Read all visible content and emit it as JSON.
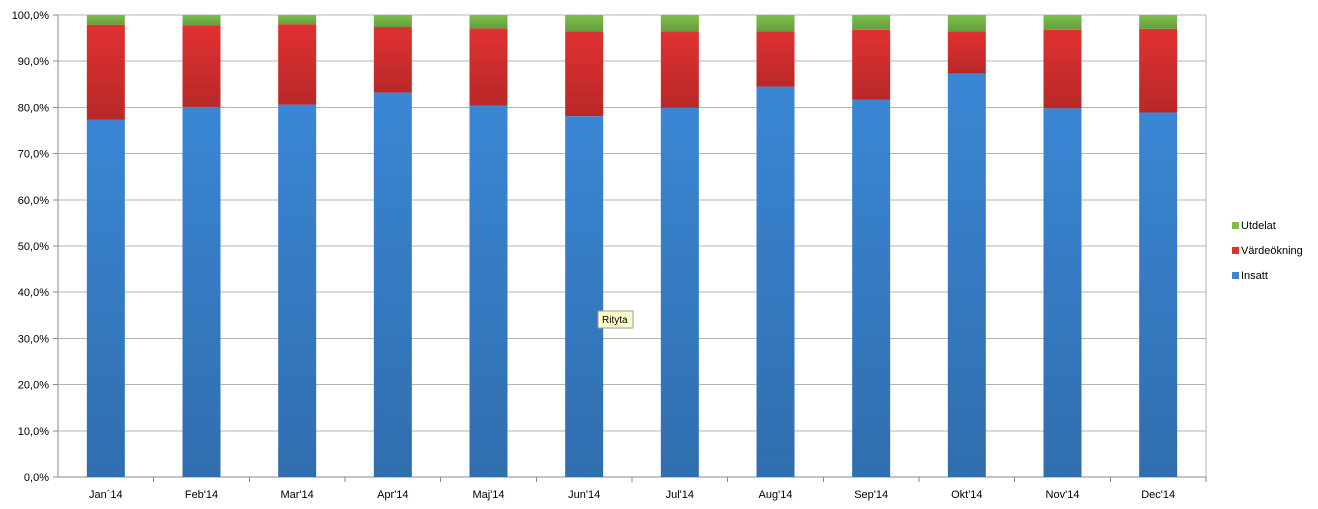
{
  "chart_data": {
    "type": "bar",
    "stacked": true,
    "percent": true,
    "categories": [
      "Jan´14",
      "Feb'14",
      "Mar'14",
      "Apr'14",
      "Maj'14",
      "Jun'14",
      "Jul'14",
      "Aug'14",
      "Sep'14",
      "Okt'14",
      "Nov'14",
      "Dec'14"
    ],
    "series": [
      {
        "name": "Insatt",
        "color": "#3a86d4",
        "values": [
          77.3,
          80.1,
          80.6,
          83.2,
          80.4,
          78.1,
          79.9,
          84.5,
          81.7,
          87.3,
          79.8,
          78.9
        ]
      },
      {
        "name": "Värdeökning",
        "color": "#e03131",
        "values": [
          20.6,
          17.7,
          17.4,
          14.2,
          16.7,
          18.4,
          16.6,
          12.0,
          15.1,
          9.2,
          17.0,
          18.1
        ]
      },
      {
        "name": "Utdelat",
        "color": "#7cc04a",
        "values": [
          2.1,
          2.2,
          2.0,
          2.6,
          2.9,
          3.5,
          3.5,
          3.5,
          3.2,
          3.5,
          3.2,
          3.0
        ]
      }
    ],
    "ylim": [
      0,
      100
    ],
    "yticks": [
      "0,0%",
      "10,0%",
      "20,0%",
      "30,0%",
      "40,0%",
      "50,0%",
      "60,0%",
      "70,0%",
      "80,0%",
      "90,0%",
      "100,0%"
    ],
    "grid": true,
    "legend": "right",
    "xlabel": "",
    "ylabel": "",
    "title": ""
  },
  "tooltip": {
    "text": "Rityta"
  }
}
